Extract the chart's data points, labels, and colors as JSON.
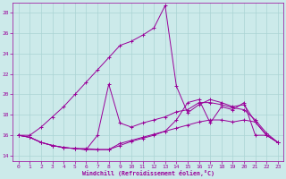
{
  "background_color": "#cceaea",
  "grid_color": "#aad4d4",
  "line_color": "#990099",
  "xlim": [
    -0.5,
    23.5
  ],
  "ylim": [
    13.5,
    29.0
  ],
  "yticks": [
    14,
    16,
    18,
    20,
    22,
    24,
    26,
    28
  ],
  "xticks": [
    0,
    1,
    2,
    3,
    4,
    5,
    6,
    7,
    8,
    9,
    10,
    11,
    12,
    13,
    14,
    15,
    16,
    17,
    18,
    19,
    20,
    21,
    22,
    23
  ],
  "xlabel": "Windchill (Refroidissement éolien,°C)",
  "curve1": [
    16.0,
    16.0,
    16.8,
    17.8,
    18.8,
    20.0,
    21.2,
    22.4,
    23.6,
    24.8,
    25.2,
    25.8,
    26.5,
    28.7,
    20.8,
    18.2,
    19.0,
    19.5,
    19.2,
    18.8,
    19.0,
    17.3,
    16.0,
    15.3
  ],
  "curve2": [
    16.0,
    15.8,
    15.3,
    15.0,
    14.8,
    14.7,
    14.7,
    14.6,
    14.6,
    15.0,
    15.4,
    15.7,
    16.0,
    16.4,
    16.7,
    17.0,
    17.3,
    17.5,
    17.5,
    17.3,
    17.5,
    17.3,
    16.0,
    15.3
  ],
  "curve3": [
    16.0,
    15.8,
    15.3,
    15.0,
    14.8,
    14.7,
    14.6,
    16.0,
    21.0,
    17.2,
    16.8,
    17.2,
    17.5,
    17.8,
    18.3,
    18.5,
    19.2,
    19.2,
    19.0,
    18.7,
    18.5,
    17.5,
    16.2,
    15.3
  ],
  "curve4": [
    16.0,
    15.8,
    15.3,
    15.0,
    14.8,
    14.7,
    14.6,
    14.6,
    14.6,
    15.2,
    15.5,
    15.8,
    16.1,
    16.4,
    17.5,
    19.2,
    19.5,
    17.2,
    18.8,
    18.5,
    19.2,
    16.0,
    16.0,
    15.3
  ]
}
